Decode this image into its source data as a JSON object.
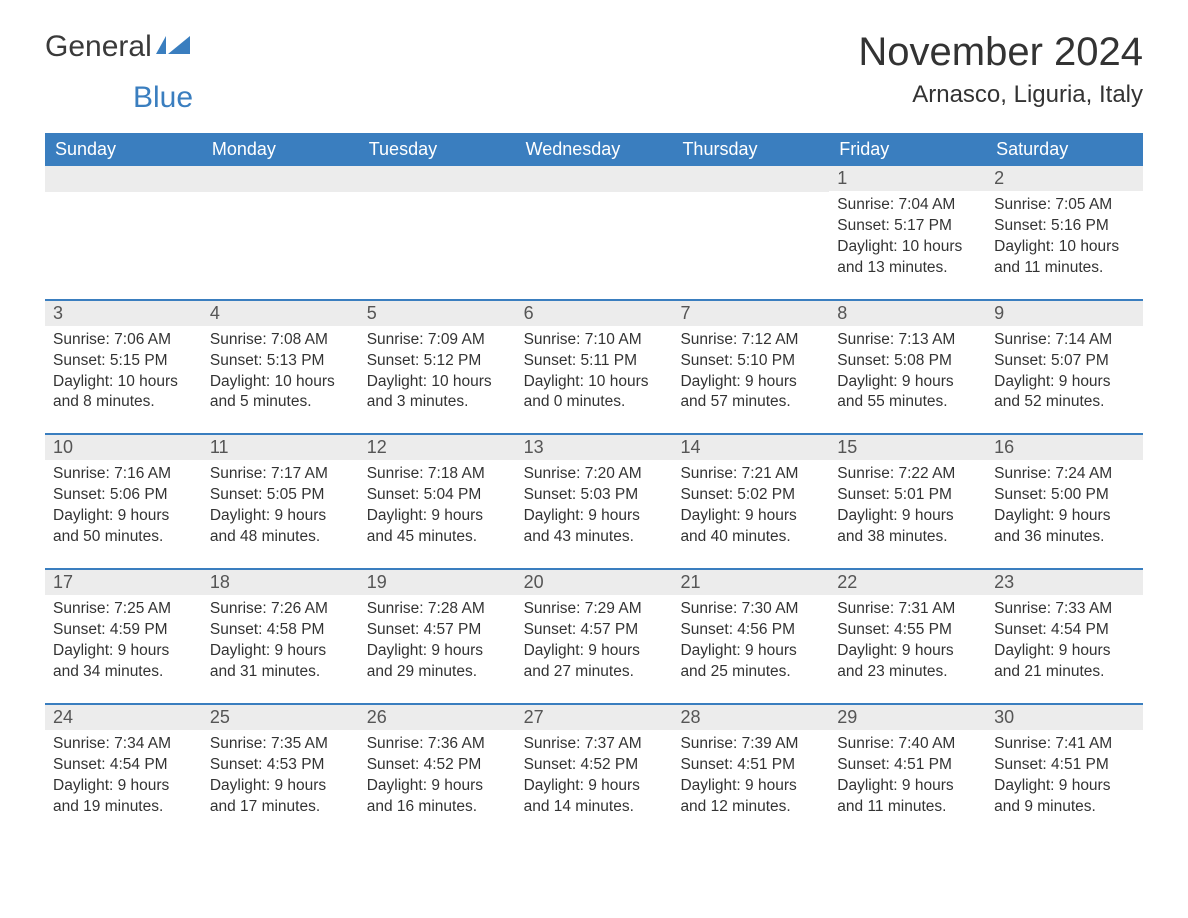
{
  "logo": {
    "text1": "General",
    "text2": "Blue"
  },
  "title": "November 2024",
  "location": "Arnasco, Liguria, Italy",
  "colors": {
    "brand": "#3a7ebf",
    "headerText": "#ffffff",
    "dayNumBg": "#ececec",
    "text": "#333333"
  },
  "daysOfWeek": [
    "Sunday",
    "Monday",
    "Tuesday",
    "Wednesday",
    "Thursday",
    "Friday",
    "Saturday"
  ],
  "weeks": [
    [
      null,
      null,
      null,
      null,
      null,
      {
        "n": "1",
        "sunrise": "Sunrise: 7:04 AM",
        "sunset": "Sunset: 5:17 PM",
        "day1": "Daylight: 10 hours",
        "day2": "and 13 minutes."
      },
      {
        "n": "2",
        "sunrise": "Sunrise: 7:05 AM",
        "sunset": "Sunset: 5:16 PM",
        "day1": "Daylight: 10 hours",
        "day2": "and 11 minutes."
      }
    ],
    [
      {
        "n": "3",
        "sunrise": "Sunrise: 7:06 AM",
        "sunset": "Sunset: 5:15 PM",
        "day1": "Daylight: 10 hours",
        "day2": "and 8 minutes."
      },
      {
        "n": "4",
        "sunrise": "Sunrise: 7:08 AM",
        "sunset": "Sunset: 5:13 PM",
        "day1": "Daylight: 10 hours",
        "day2": "and 5 minutes."
      },
      {
        "n": "5",
        "sunrise": "Sunrise: 7:09 AM",
        "sunset": "Sunset: 5:12 PM",
        "day1": "Daylight: 10 hours",
        "day2": "and 3 minutes."
      },
      {
        "n": "6",
        "sunrise": "Sunrise: 7:10 AM",
        "sunset": "Sunset: 5:11 PM",
        "day1": "Daylight: 10 hours",
        "day2": "and 0 minutes."
      },
      {
        "n": "7",
        "sunrise": "Sunrise: 7:12 AM",
        "sunset": "Sunset: 5:10 PM",
        "day1": "Daylight: 9 hours",
        "day2": "and 57 minutes."
      },
      {
        "n": "8",
        "sunrise": "Sunrise: 7:13 AM",
        "sunset": "Sunset: 5:08 PM",
        "day1": "Daylight: 9 hours",
        "day2": "and 55 minutes."
      },
      {
        "n": "9",
        "sunrise": "Sunrise: 7:14 AM",
        "sunset": "Sunset: 5:07 PM",
        "day1": "Daylight: 9 hours",
        "day2": "and 52 minutes."
      }
    ],
    [
      {
        "n": "10",
        "sunrise": "Sunrise: 7:16 AM",
        "sunset": "Sunset: 5:06 PM",
        "day1": "Daylight: 9 hours",
        "day2": "and 50 minutes."
      },
      {
        "n": "11",
        "sunrise": "Sunrise: 7:17 AM",
        "sunset": "Sunset: 5:05 PM",
        "day1": "Daylight: 9 hours",
        "day2": "and 48 minutes."
      },
      {
        "n": "12",
        "sunrise": "Sunrise: 7:18 AM",
        "sunset": "Sunset: 5:04 PM",
        "day1": "Daylight: 9 hours",
        "day2": "and 45 minutes."
      },
      {
        "n": "13",
        "sunrise": "Sunrise: 7:20 AM",
        "sunset": "Sunset: 5:03 PM",
        "day1": "Daylight: 9 hours",
        "day2": "and 43 minutes."
      },
      {
        "n": "14",
        "sunrise": "Sunrise: 7:21 AM",
        "sunset": "Sunset: 5:02 PM",
        "day1": "Daylight: 9 hours",
        "day2": "and 40 minutes."
      },
      {
        "n": "15",
        "sunrise": "Sunrise: 7:22 AM",
        "sunset": "Sunset: 5:01 PM",
        "day1": "Daylight: 9 hours",
        "day2": "and 38 minutes."
      },
      {
        "n": "16",
        "sunrise": "Sunrise: 7:24 AM",
        "sunset": "Sunset: 5:00 PM",
        "day1": "Daylight: 9 hours",
        "day2": "and 36 minutes."
      }
    ],
    [
      {
        "n": "17",
        "sunrise": "Sunrise: 7:25 AM",
        "sunset": "Sunset: 4:59 PM",
        "day1": "Daylight: 9 hours",
        "day2": "and 34 minutes."
      },
      {
        "n": "18",
        "sunrise": "Sunrise: 7:26 AM",
        "sunset": "Sunset: 4:58 PM",
        "day1": "Daylight: 9 hours",
        "day2": "and 31 minutes."
      },
      {
        "n": "19",
        "sunrise": "Sunrise: 7:28 AM",
        "sunset": "Sunset: 4:57 PM",
        "day1": "Daylight: 9 hours",
        "day2": "and 29 minutes."
      },
      {
        "n": "20",
        "sunrise": "Sunrise: 7:29 AM",
        "sunset": "Sunset: 4:57 PM",
        "day1": "Daylight: 9 hours",
        "day2": "and 27 minutes."
      },
      {
        "n": "21",
        "sunrise": "Sunrise: 7:30 AM",
        "sunset": "Sunset: 4:56 PM",
        "day1": "Daylight: 9 hours",
        "day2": "and 25 minutes."
      },
      {
        "n": "22",
        "sunrise": "Sunrise: 7:31 AM",
        "sunset": "Sunset: 4:55 PM",
        "day1": "Daylight: 9 hours",
        "day2": "and 23 minutes."
      },
      {
        "n": "23",
        "sunrise": "Sunrise: 7:33 AM",
        "sunset": "Sunset: 4:54 PM",
        "day1": "Daylight: 9 hours",
        "day2": "and 21 minutes."
      }
    ],
    [
      {
        "n": "24",
        "sunrise": "Sunrise: 7:34 AM",
        "sunset": "Sunset: 4:54 PM",
        "day1": "Daylight: 9 hours",
        "day2": "and 19 minutes."
      },
      {
        "n": "25",
        "sunrise": "Sunrise: 7:35 AM",
        "sunset": "Sunset: 4:53 PM",
        "day1": "Daylight: 9 hours",
        "day2": "and 17 minutes."
      },
      {
        "n": "26",
        "sunrise": "Sunrise: 7:36 AM",
        "sunset": "Sunset: 4:52 PM",
        "day1": "Daylight: 9 hours",
        "day2": "and 16 minutes."
      },
      {
        "n": "27",
        "sunrise": "Sunrise: 7:37 AM",
        "sunset": "Sunset: 4:52 PM",
        "day1": "Daylight: 9 hours",
        "day2": "and 14 minutes."
      },
      {
        "n": "28",
        "sunrise": "Sunrise: 7:39 AM",
        "sunset": "Sunset: 4:51 PM",
        "day1": "Daylight: 9 hours",
        "day2": "and 12 minutes."
      },
      {
        "n": "29",
        "sunrise": "Sunrise: 7:40 AM",
        "sunset": "Sunset: 4:51 PM",
        "day1": "Daylight: 9 hours",
        "day2": "and 11 minutes."
      },
      {
        "n": "30",
        "sunrise": "Sunrise: 7:41 AM",
        "sunset": "Sunset: 4:51 PM",
        "day1": "Daylight: 9 hours",
        "day2": "and 9 minutes."
      }
    ]
  ]
}
